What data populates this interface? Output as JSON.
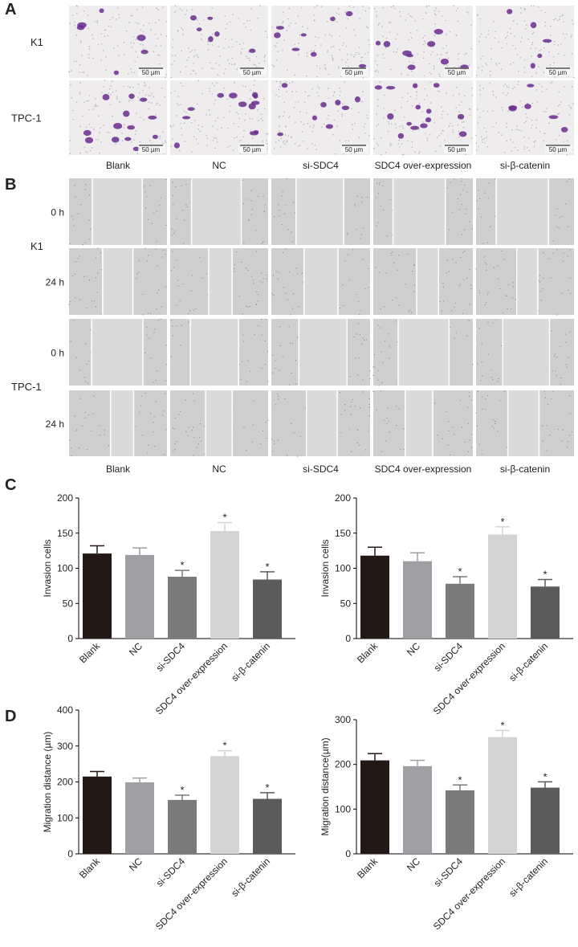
{
  "panel_labels": [
    "A",
    "B",
    "C",
    "D"
  ],
  "panel_a": {
    "row_labels": [
      "K1",
      "TPC-1"
    ],
    "column_labels": [
      "Blank",
      "NC",
      "si-SDC4",
      "SDC4 over-expression",
      "si-β-catenin"
    ],
    "scale_bar": "50 µm"
  },
  "panel_b": {
    "cell_lines": [
      "K1",
      "TPC-1"
    ],
    "time_labels": [
      "0 h",
      "24 h"
    ],
    "column_labels": [
      "Blank",
      "NC",
      "si-SDC4",
      "SDC4 over-expression",
      "si-β-catenin"
    ]
  },
  "chart_data": [
    {
      "type": "bar",
      "y_label": "Invasion cells",
      "categories": [
        "Blank",
        "NC",
        "si-SDC4",
        "SDC4 over-expression",
        "si-β-catenin"
      ],
      "values": [
        121,
        119,
        88,
        153,
        84
      ],
      "errors": [
        11,
        10,
        9,
        12,
        11
      ],
      "annotations": [
        null,
        null,
        "*",
        "*",
        "*"
      ],
      "colors": [
        "#231815",
        "#a09fa4",
        "#7a7a7a",
        "#d4d4d4",
        "#5b5b5b"
      ],
      "ylim": [
        0,
        200
      ],
      "yticks": [
        0,
        50,
        100,
        150,
        200
      ]
    },
    {
      "type": "bar",
      "y_label": "Invasion cells",
      "categories": [
        "Blank",
        "NC",
        "si-SDC4",
        "SDC4 over-expression",
        "si-β-catenin"
      ],
      "values": [
        118,
        110,
        78,
        148,
        74
      ],
      "errors": [
        12,
        12,
        10,
        11,
        10
      ],
      "annotations": [
        null,
        null,
        "*",
        "*",
        "*"
      ],
      "colors": [
        "#231815",
        "#a09fa4",
        "#7a7a7a",
        "#d4d4d4",
        "#5b5b5b"
      ],
      "ylim": [
        0,
        200
      ],
      "yticks": [
        0,
        50,
        100,
        150,
        200
      ]
    },
    {
      "type": "bar",
      "y_label": "Migration distance (µm)",
      "categories": [
        "Blank",
        "NC",
        "si-SDC4",
        "SDC4 over-expression",
        "si-β-catenin"
      ],
      "values": [
        215,
        199,
        150,
        272,
        153
      ],
      "errors": [
        14,
        12,
        13,
        15,
        17
      ],
      "annotations": [
        null,
        null,
        "*",
        "*",
        "*"
      ],
      "colors": [
        "#231815",
        "#a09fa4",
        "#7a7a7a",
        "#d4d4d4",
        "#5b5b5b"
      ],
      "ylim": [
        0,
        400
      ],
      "yticks": [
        0,
        100,
        200,
        300,
        400
      ]
    },
    {
      "type": "bar",
      "y_label": "Migration distance(µm)",
      "categories": [
        "Blank",
        "NC",
        "si-SDC4",
        "SDC4 over-expression",
        "si-β-catenin"
      ],
      "values": [
        209,
        196,
        142,
        261,
        148
      ],
      "errors": [
        15,
        13,
        12,
        15,
        13
      ],
      "annotations": [
        null,
        null,
        "*",
        "*",
        "*"
      ],
      "colors": [
        "#231815",
        "#a09fa4",
        "#7a7a7a",
        "#d4d4d4",
        "#5b5b5b"
      ],
      "ylim": [
        0,
        300
      ],
      "yticks": [
        0,
        100,
        200,
        300
      ]
    }
  ]
}
